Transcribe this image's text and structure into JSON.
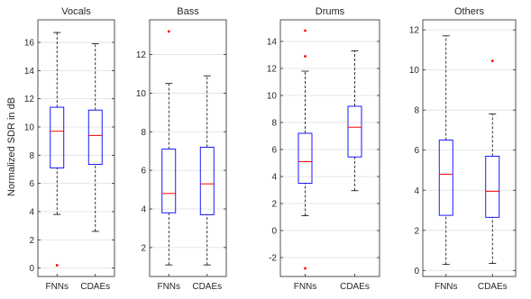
{
  "figure": {
    "ylabel": "Normalized SDR in dB"
  },
  "colors": {
    "box": "#0000ff",
    "median": "#ff0000",
    "outlier": "#ff0000",
    "whisker": "#000000",
    "axis": "#262626",
    "grid": "#dfdfdf"
  },
  "chart_data": [
    {
      "type": "box",
      "title": "Vocals",
      "xlabel": "",
      "ylabel": "Normalized SDR in dB",
      "categories": [
        "FNNs",
        "CDAEs"
      ],
      "ylim": [
        -0.6,
        17.6
      ],
      "yticks": [
        0,
        2,
        4,
        6,
        8,
        10,
        12,
        14,
        16
      ],
      "grid": true,
      "boxes": [
        {
          "label": "FNNs",
          "min": 3.8,
          "q1": 7.1,
          "median": 9.7,
          "q3": 11.4,
          "max": 16.7,
          "outliers": [
            0.2
          ]
        },
        {
          "label": "CDAEs",
          "min": 2.6,
          "q1": 7.35,
          "median": 9.4,
          "q3": 11.2,
          "max": 15.9,
          "outliers": []
        }
      ]
    },
    {
      "type": "box",
      "title": "Bass",
      "xlabel": "",
      "ylabel": "",
      "categories": [
        "FNNs",
        "CDAEs"
      ],
      "ylim": [
        0.5,
        13.8
      ],
      "yticks": [
        2,
        4,
        6,
        8,
        10,
        12
      ],
      "grid": true,
      "boxes": [
        {
          "label": "FNNs",
          "min": 1.1,
          "q1": 3.8,
          "median": 4.8,
          "q3": 7.1,
          "max": 10.5,
          "outliers": [
            13.2
          ]
        },
        {
          "label": "CDAEs",
          "min": 1.1,
          "q1": 3.7,
          "median": 5.3,
          "q3": 7.2,
          "max": 10.9,
          "outliers": []
        }
      ]
    },
    {
      "type": "box",
      "title": "Drums",
      "xlabel": "",
      "ylabel": "",
      "categories": [
        "FNNs",
        "CDAEs"
      ],
      "ylim": [
        -3.4,
        15.6
      ],
      "yticks": [
        -2,
        0,
        2,
        4,
        6,
        8,
        10,
        12,
        14
      ],
      "grid": true,
      "boxes": [
        {
          "label": "FNNs",
          "min": 1.1,
          "q1": 3.5,
          "median": 5.1,
          "q3": 7.2,
          "max": 11.8,
          "outliers": [
            12.9,
            14.8,
            -2.8
          ]
        },
        {
          "label": "CDAEs",
          "min": 2.95,
          "q1": 5.45,
          "median": 7.65,
          "q3": 9.2,
          "max": 13.3,
          "outliers": []
        }
      ]
    },
    {
      "type": "box",
      "title": "Others",
      "xlabel": "",
      "ylabel": "",
      "categories": [
        "FNNs",
        "CDAEs"
      ],
      "ylim": [
        -0.3,
        12.5
      ],
      "yticks": [
        0,
        2,
        4,
        6,
        8,
        10,
        12
      ],
      "grid": true,
      "boxes": [
        {
          "label": "FNNs",
          "min": 0.3,
          "q1": 2.75,
          "median": 4.8,
          "q3": 6.5,
          "max": 11.7,
          "outliers": []
        },
        {
          "label": "CDAEs",
          "min": 0.35,
          "q1": 2.65,
          "median": 3.95,
          "q3": 5.7,
          "max": 7.8,
          "outliers": [
            10.45
          ]
        }
      ]
    }
  ]
}
